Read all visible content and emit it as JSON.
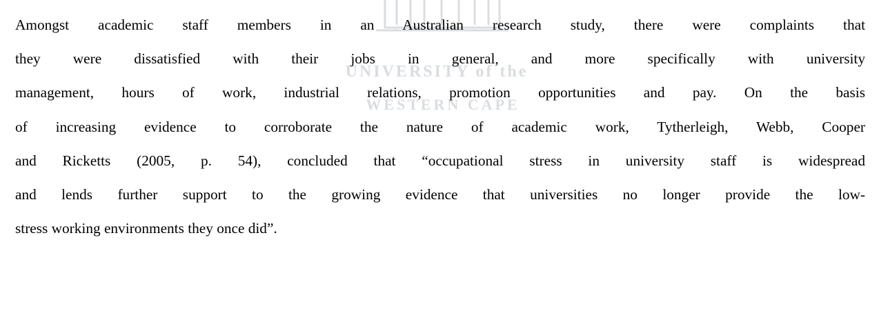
{
  "watermark": {
    "lines": [
      "UNIVERSITY of the",
      "WESTERN CAPE"
    ]
  },
  "document": {
    "paragraph_lines": [
      "Amongst academic staff members in an Australian research study, there were complaints that",
      "they were dissatisfied with their jobs in general, and more specifically with university",
      "management, hours of work, industrial relations, promotion opportunities and pay. On the basis",
      "of increasing evidence to corroborate the nature of academic work, Tytherleigh, Webb, Cooper",
      "and Ricketts (2005, p. 54), concluded that “occupational stress in university staff is widespread",
      "and lends further support to the growing evidence that universities no longer provide the low-",
      "stress working environments they once did”."
    ]
  }
}
